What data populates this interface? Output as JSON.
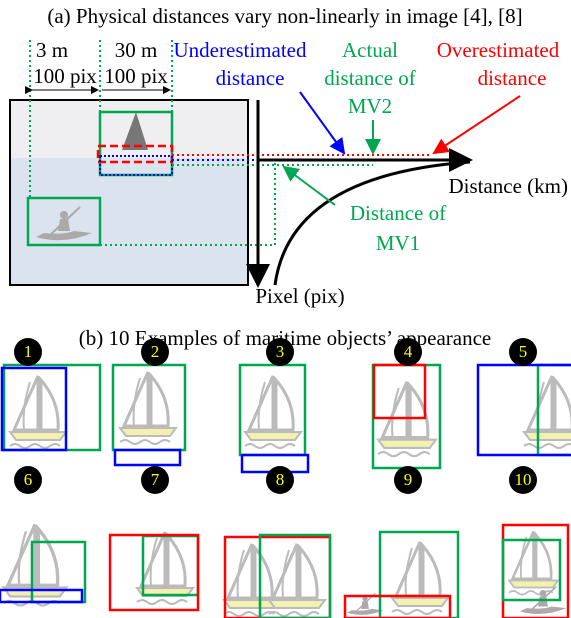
{
  "part_a": {
    "caption": "(a) Physical distances vary non-linearly in image [4], [8]",
    "dist_small": "3 m",
    "dist_large": "30 m",
    "pix_small": "100 pix",
    "pix_large": "100 pix",
    "underestimated": [
      "Underestimated",
      "distance"
    ],
    "actual": [
      "Actual",
      "distance of",
      "MV2"
    ],
    "overestimated": [
      "Overestimated",
      "distance"
    ],
    "x_axis": "Distance (km)",
    "mv1": [
      "Distance of",
      "MV1"
    ],
    "y_axis": "Pixel (pix)"
  },
  "part_b": {
    "caption": "(b) 10 Examples of maritime objects’ appearance",
    "examples": [
      "1",
      "2",
      "3",
      "4",
      "5",
      "6",
      "7",
      "8",
      "9",
      "10"
    ]
  }
}
